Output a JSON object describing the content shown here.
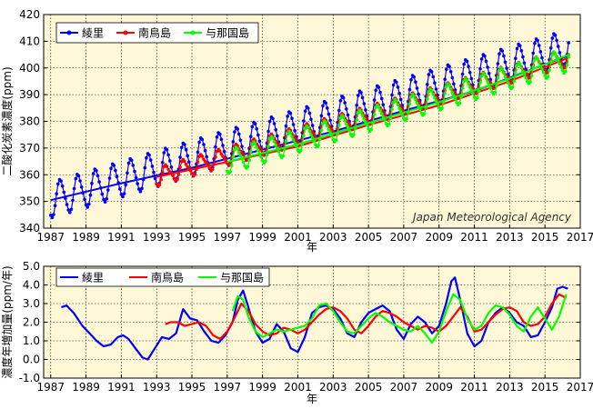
{
  "chart_data": [
    {
      "type": "line",
      "ylabel": "二酸化炭素濃度(ppm)",
      "xlabel": "年",
      "annotation": "Japan Meteorological Agency",
      "ylim": [
        340,
        420
      ],
      "xlim": [
        1986.6,
        2017.0
      ],
      "yticks": [
        340,
        350,
        360,
        370,
        380,
        390,
        400,
        410,
        420
      ],
      "xticks": [
        "1987",
        "1989",
        "1991",
        "1993",
        "1995",
        "1997",
        "1999",
        "2001",
        "2003",
        "2005",
        "2007",
        "2009",
        "2011",
        "2013",
        "2015",
        "2017"
      ],
      "grid": true,
      "legend_position": "top-left",
      "background": "#FFF8D6",
      "series": [
        {
          "name": "綾里",
          "color": "#0000FF",
          "marker": "circle",
          "start": 1987.0,
          "end": 2016.4,
          "trend_start": 350.5,
          "trend_rate": 1.95,
          "amplitude": 6.5,
          "trend_line": {
            "x": [
              1987.0,
              1991.0,
              1995.0,
              1999.0,
              2003.0,
              2007.0,
              2011.0,
              2016.4
            ],
            "y": [
              350.5,
              356.8,
              362.6,
              369.4,
              376.2,
              384.0,
              391.3,
              404.8
            ]
          }
        },
        {
          "name": "南鳥島",
          "color": "#FF0000",
          "marker": "circle",
          "start": 1993.0,
          "end": 2016.4,
          "trend_start": 359.2,
          "trend_rate": 1.92,
          "amplitude": 3.2,
          "trend_line": {
            "x": [
              1993.0,
              1997.0,
              2001.0,
              2005.0,
              2009.0,
              2013.0,
              2016.4
            ],
            "y": [
              359.2,
              364.8,
              370.6,
              378.6,
              386.0,
              395.0,
              404.0
            ]
          }
        },
        {
          "name": "与那国島",
          "color": "#00FF00",
          "marker": "circle",
          "start": 1997.0,
          "end": 2016.4,
          "trend_start": 364.8,
          "trend_rate": 1.98,
          "amplitude": 4.2,
          "trend_line": {
            "x": [
              1997.0,
              2001.0,
              2005.0,
              2009.0,
              2013.0,
              2016.4
            ],
            "y": [
              364.8,
              371.4,
              379.4,
              387.2,
              396.0,
              405.2
            ]
          }
        }
      ]
    },
    {
      "type": "line",
      "ylabel": "濃度年増加量(ppm/年)",
      "xlabel": "年",
      "ylim": [
        -1.0,
        5.0
      ],
      "xlim": [
        1986.6,
        2017.0
      ],
      "yticks": [
        -1.0,
        0.0,
        1.0,
        2.0,
        3.0,
        4.0,
        5.0
      ],
      "xticks": [
        "1987",
        "1989",
        "1991",
        "1993",
        "1995",
        "1997",
        "1999",
        "2001",
        "2003",
        "2005",
        "2007",
        "2009",
        "2011",
        "2013",
        "2015",
        "2017"
      ],
      "grid": true,
      "legend_position": "top-left",
      "background": "#FFF8D6",
      "series": [
        {
          "name": "綾里",
          "color": "#0000FF",
          "x": [
            1987.6,
            1987.9,
            1988.3,
            1988.8,
            1989.2,
            1989.6,
            1990.0,
            1990.4,
            1990.8,
            1991.1,
            1991.4,
            1991.8,
            1992.2,
            1992.5,
            1992.9,
            1993.3,
            1993.7,
            1994.1,
            1994.5,
            1994.9,
            1995.3,
            1995.7,
            1996.1,
            1996.5,
            1996.9,
            1997.3,
            1997.6,
            1997.9,
            1998.2,
            1998.6,
            1999.0,
            1999.4,
            1999.8,
            2000.2,
            2000.6,
            2001.0,
            2001.4,
            2001.8,
            2002.2,
            2002.6,
            2003.0,
            2003.4,
            2003.8,
            2004.2,
            2004.6,
            2005.0,
            2005.4,
            2005.8,
            2006.2,
            2006.6,
            2007.0,
            2007.4,
            2007.8,
            2008.2,
            2008.6,
            2009.0,
            2009.4,
            2009.7,
            2009.9,
            2010.2,
            2010.6,
            2011.0,
            2011.4,
            2011.8,
            2012.2,
            2012.6,
            2013.0,
            2013.4,
            2013.8,
            2014.2,
            2014.6,
            2015.0,
            2015.4,
            2015.7,
            2016.0,
            2016.3
          ],
          "y": [
            2.8,
            2.9,
            2.5,
            1.8,
            1.4,
            1.0,
            0.7,
            0.8,
            1.2,
            1.3,
            1.1,
            0.6,
            0.1,
            0.0,
            0.6,
            1.2,
            1.1,
            1.4,
            2.7,
            2.2,
            2.1,
            1.5,
            1.0,
            0.9,
            1.3,
            2.0,
            3.2,
            3.7,
            2.8,
            1.5,
            0.9,
            1.1,
            1.9,
            1.5,
            0.6,
            0.4,
            1.2,
            2.5,
            2.8,
            2.9,
            2.7,
            2.2,
            1.4,
            1.2,
            2.0,
            2.5,
            2.7,
            2.9,
            2.6,
            1.6,
            1.1,
            1.9,
            2.3,
            2.0,
            1.4,
            1.8,
            3.0,
            4.2,
            4.4,
            3.2,
            1.4,
            0.7,
            1.0,
            2.0,
            2.5,
            2.8,
            2.5,
            2.0,
            1.8,
            1.2,
            1.3,
            2.0,
            2.8,
            3.8,
            3.9,
            3.8
          ]
        },
        {
          "name": "南鳥島",
          "color": "#FF0000",
          "x": [
            1993.5,
            1993.8,
            1994.2,
            1994.6,
            1995.0,
            1995.4,
            1995.8,
            1996.2,
            1996.6,
            1997.0,
            1997.4,
            1997.8,
            1998.2,
            1998.6,
            1999.0,
            1999.4,
            1999.8,
            2000.2,
            2000.6,
            2001.0,
            2001.4,
            2001.8,
            2002.2,
            2002.6,
            2003.0,
            2003.4,
            2003.8,
            2004.2,
            2004.6,
            2005.0,
            2005.4,
            2005.8,
            2006.2,
            2006.6,
            2007.0,
            2007.4,
            2007.8,
            2008.2,
            2008.6,
            2009.0,
            2009.4,
            2009.8,
            2010.2,
            2010.6,
            2011.0,
            2011.4,
            2011.8,
            2012.2,
            2012.6,
            2013.0,
            2013.4,
            2013.8,
            2014.2,
            2014.6,
            2015.0,
            2015.4,
            2015.8,
            2016.2
          ],
          "y": [
            1.9,
            2.0,
            2.0,
            1.8,
            1.9,
            2.0,
            1.8,
            1.3,
            1.1,
            1.5,
            2.2,
            3.0,
            2.6,
            1.9,
            1.5,
            1.3,
            1.4,
            1.7,
            1.6,
            1.4,
            1.6,
            2.0,
            2.4,
            2.7,
            2.8,
            2.6,
            2.2,
            1.6,
            1.4,
            1.8,
            2.3,
            2.6,
            2.5,
            2.3,
            2.0,
            1.8,
            1.6,
            1.8,
            1.7,
            1.5,
            1.8,
            2.3,
            2.8,
            2.3,
            1.5,
            1.6,
            2.0,
            2.4,
            2.7,
            2.8,
            2.6,
            2.0,
            1.8,
            1.9,
            2.3,
            3.0,
            3.5,
            3.3
          ]
        },
        {
          "name": "与那国島",
          "color": "#00FF00",
          "x": [
            1997.3,
            1997.6,
            1997.9,
            1998.2,
            1998.6,
            1999.0,
            1999.4,
            1999.8,
            2000.2,
            2000.6,
            2001.0,
            2001.4,
            2001.8,
            2002.2,
            2002.6,
            2003.0,
            2003.4,
            2003.8,
            2004.2,
            2004.6,
            2005.0,
            2005.4,
            2005.8,
            2006.2,
            2006.6,
            2007.0,
            2007.4,
            2007.8,
            2008.2,
            2008.6,
            2009.0,
            2009.4,
            2009.8,
            2010.2,
            2010.6,
            2011.0,
            2011.4,
            2011.8,
            2012.2,
            2012.6,
            2013.0,
            2013.4,
            2013.8,
            2014.2,
            2014.6,
            2015.0,
            2015.4,
            2015.8,
            2016.2
          ],
          "y": [
            2.6,
            3.4,
            3.2,
            2.3,
            1.5,
            1.2,
            1.4,
            1.6,
            1.5,
            1.6,
            1.7,
            1.8,
            2.2,
            2.9,
            3.0,
            2.6,
            2.0,
            1.5,
            1.4,
            1.8,
            2.2,
            2.5,
            2.3,
            2.0,
            1.8,
            1.6,
            1.5,
            1.8,
            1.4,
            0.9,
            1.5,
            2.6,
            3.5,
            3.2,
            2.2,
            1.6,
            1.8,
            2.5,
            2.9,
            2.8,
            2.4,
            1.8,
            1.5,
            2.3,
            2.8,
            2.2,
            1.6,
            2.3,
            3.5
          ]
        }
      ]
    }
  ]
}
